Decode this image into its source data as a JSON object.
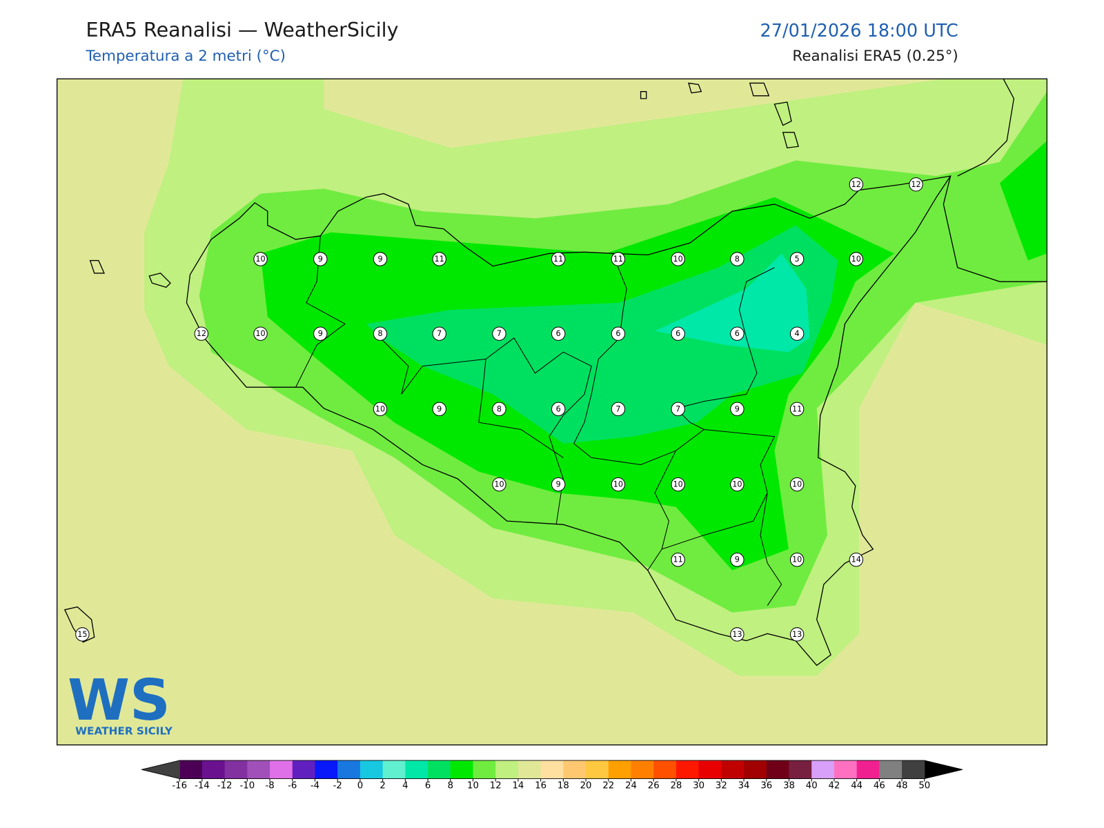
{
  "header": {
    "title": "ERA5 Reanalisi — WeatherSicily",
    "subtitle": "Temperatura a 2 metri (°C)",
    "datetime": "27/01/2026 18:00 UTC",
    "source": "Reanalisi ERA5 (0.25°)"
  },
  "stations": [
    12,
    12,
    10,
    9,
    9,
    11,
    11,
    11,
    10,
    8,
    5,
    10,
    12,
    10,
    9,
    8,
    7,
    7,
    6,
    6,
    6,
    6,
    4,
    10,
    9,
    8,
    6,
    7,
    7,
    9,
    11,
    10,
    9,
    10,
    10,
    10,
    10,
    11,
    9,
    10,
    14,
    15,
    13,
    13
  ],
  "colorbar": {
    "ticks": [
      -16,
      -14,
      -12,
      -10,
      -8,
      -6,
      -4,
      -2,
      0,
      2,
      4,
      6,
      8,
      10,
      12,
      14,
      16,
      18,
      20,
      22,
      24,
      26,
      28,
      30,
      32,
      34,
      36,
      38,
      40,
      42,
      44,
      46,
      48,
      50
    ],
    "colors": [
      "#4b0055",
      "#6a1190",
      "#8330a0",
      "#a050b8",
      "#e070e8",
      "#6020c0",
      "#0818f8",
      "#1878e0",
      "#18c8e0",
      "#60f0d0",
      "#00e8a8",
      "#00e060",
      "#00e800",
      "#70ec40",
      "#c0f080",
      "#e0e898",
      "#ffe0a0",
      "#ffc870",
      "#ffc840",
      "#ffa000",
      "#ff8000",
      "#ff5000",
      "#ff1800",
      "#e80000",
      "#c00000",
      "#a00000",
      "#700018",
      "#782040",
      "#d8a0f8",
      "#ff70c0",
      "#f02090",
      "#808080",
      "#404040"
    ],
    "under_color": "#404040",
    "over_color": "#000000"
  },
  "logo": {
    "mark": "WS",
    "text": "WEATHER SICILY"
  }
}
